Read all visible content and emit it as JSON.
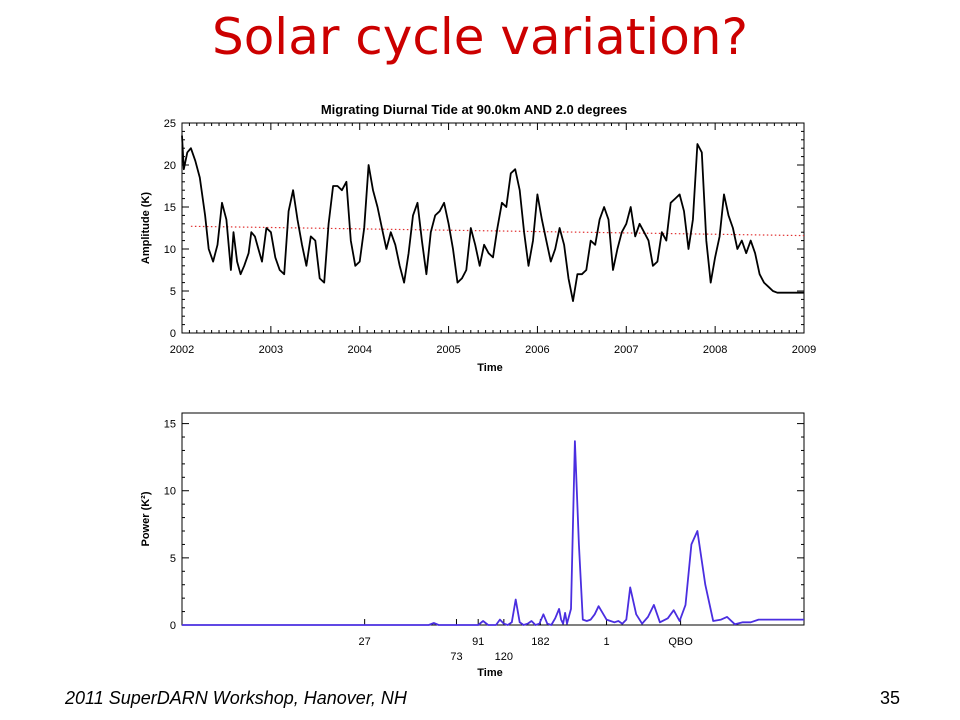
{
  "slide": {
    "title": "Solar cycle variation?",
    "footer": "2011 SuperDARN Workshop, Hanover, NH",
    "page_number": "35"
  },
  "colors": {
    "title": "#cc0000",
    "amplitude_line": "#000000",
    "trend_line": "#e03030",
    "power_line": "#4a2ee0"
  },
  "chart_data": [
    {
      "type": "line",
      "title": "Migrating Diurnal Tide at  90.0km AND  2.0 degrees",
      "xlabel": "Time",
      "ylabel": "Amplitude (K)",
      "xlim": [
        2002,
        2009
      ],
      "ylim": [
        0,
        25
      ],
      "x_ticks": [
        "2002",
        "2003",
        "2004",
        "2005",
        "2006",
        "2007",
        "2008",
        "2009"
      ],
      "y_ticks": [
        "0",
        "5",
        "10",
        "15",
        "20",
        "25"
      ],
      "series": [
        {
          "style": "solid",
          "x": [
            2002.0,
            2002.02,
            2002.06,
            2002.1,
            2002.15,
            2002.2,
            2002.26,
            2002.3,
            2002.35,
            2002.4,
            2002.45,
            2002.5,
            2002.55,
            2002.58,
            2002.62,
            2002.66,
            2002.7,
            2002.75,
            2002.78,
            2002.82,
            2002.86,
            2002.9,
            2002.95,
            2003.0,
            2003.05,
            2003.1,
            2003.15,
            2003.2,
            2003.25,
            2003.3,
            2003.35,
            2003.4,
            2003.45,
            2003.5,
            2003.55,
            2003.6,
            2003.65,
            2003.7,
            2003.75,
            2003.8,
            2003.85,
            2003.9,
            2003.95,
            2004.0,
            2004.05,
            2004.1,
            2004.15,
            2004.2,
            2004.25,
            2004.3,
            2004.35,
            2004.4,
            2004.45,
            2004.5,
            2004.55,
            2004.6,
            2004.65,
            2004.7,
            2004.75,
            2004.8,
            2004.85,
            2004.9,
            2004.95,
            2005.0,
            2005.05,
            2005.1,
            2005.15,
            2005.2,
            2005.25,
            2005.3,
            2005.35,
            2005.4,
            2005.45,
            2005.5,
            2005.55,
            2005.6,
            2005.65,
            2005.7,
            2005.75,
            2005.8,
            2005.85,
            2005.9,
            2005.95,
            2006.0,
            2006.05,
            2006.1,
            2006.15,
            2006.2,
            2006.25,
            2006.3,
            2006.35,
            2006.4,
            2006.45,
            2006.5,
            2006.55,
            2006.6,
            2006.65,
            2006.7,
            2006.75,
            2006.8,
            2006.85,
            2006.9,
            2006.95,
            2007.0,
            2007.05,
            2007.1,
            2007.15,
            2007.2,
            2007.25,
            2007.3,
            2007.35,
            2007.4,
            2007.45,
            2007.5,
            2007.55,
            2007.6,
            2007.65,
            2007.7,
            2007.75,
            2007.8,
            2007.85,
            2007.9,
            2007.95,
            2008.0,
            2008.05,
            2008.1,
            2008.15,
            2008.2,
            2008.25,
            2008.3,
            2008.35,
            2008.4,
            2008.45,
            2008.5,
            2008.55,
            2008.6,
            2008.65,
            2008.7,
            2008.75,
            2008.8,
            2008.85,
            2008.9,
            2008.95,
            2009.0
          ],
          "y": [
            23.5,
            19.5,
            21.5,
            22.0,
            20.5,
            18.5,
            14.0,
            10.0,
            8.5,
            10.5,
            15.5,
            13.5,
            7.5,
            12.0,
            8.5,
            7.0,
            8.0,
            9.5,
            12.0,
            11.5,
            10.0,
            8.5,
            12.5,
            12.0,
            9.0,
            7.5,
            7.0,
            14.5,
            17.0,
            13.5,
            10.5,
            8.0,
            11.5,
            11.0,
            6.5,
            6.0,
            13.0,
            17.5,
            17.5,
            17.0,
            18.0,
            11.0,
            8.0,
            8.5,
            12.5,
            20.0,
            17.0,
            15.0,
            12.5,
            10.0,
            12.0,
            10.5,
            8.0,
            6.0,
            9.5,
            14.0,
            15.5,
            11.0,
            7.0,
            12.0,
            14.0,
            14.5,
            15.5,
            13.0,
            10.0,
            6.0,
            6.5,
            7.5,
            12.5,
            10.5,
            8.0,
            10.5,
            9.5,
            9.0,
            12.5,
            15.5,
            15.0,
            19.0,
            19.5,
            17.0,
            12.0,
            8.0,
            11.0,
            16.5,
            13.5,
            11.0,
            8.5,
            10.0,
            12.5,
            10.5,
            6.5,
            3.8,
            7.0,
            7.0,
            7.5,
            11.0,
            10.5,
            13.5,
            15.0,
            13.5,
            7.5,
            10.0,
            12.0,
            13.0,
            15.0,
            11.5,
            13.0,
            12.0,
            11.0,
            8.0,
            8.5,
            12.0,
            11.0,
            15.5,
            16.0,
            16.5,
            14.5,
            10.0,
            13.5,
            22.5,
            21.5,
            11.0,
            6.0,
            9.0,
            11.5,
            16.5,
            14.0,
            12.5,
            10.0,
            11.0,
            9.5,
            11.0,
            9.5,
            7.0,
            6.0,
            5.5,
            5.0,
            4.8,
            4.8,
            4.8,
            4.8,
            4.8,
            4.8,
            4.8
          ]
        },
        {
          "style": "dotted",
          "x": [
            2002.1,
            2009.0
          ],
          "y": [
            12.7,
            11.6
          ]
        }
      ]
    },
    {
      "type": "line",
      "title": "",
      "xlabel": "Time",
      "ylabel": "Power (K²)",
      "ylim": [
        0,
        15
      ],
      "y_ticks": [
        "0",
        "5",
        "10",
        "15"
      ],
      "x_ticks": [
        "27",
        "91",
        "182",
        "1",
        "QBO"
      ],
      "x_ticks_lower": [
        "73",
        "120"
      ],
      "series": [
        {
          "style": "solid",
          "x": [
            0,
            250,
            255,
            260,
            280,
            300,
            305,
            310,
            318,
            322,
            326,
            330,
            334,
            338,
            342,
            346,
            350,
            354,
            358,
            362,
            366,
            370,
            374,
            378,
            382,
            384,
            386,
            388,
            390,
            394,
            398,
            402,
            406,
            410,
            414,
            418,
            422,
            426,
            430,
            434,
            438,
            442,
            446,
            450,
            454,
            460,
            466,
            472,
            478,
            484,
            492,
            498,
            504,
            510,
            516,
            522,
            530,
            538,
            546,
            552,
            560,
            568,
            576,
            584,
            590,
            600,
            630
          ],
          "y": [
            0,
            0,
            0.15,
            0,
            0,
            0,
            0.3,
            0,
            0,
            0.4,
            0.1,
            0,
            0.2,
            1.9,
            0.2,
            0,
            0.1,
            0.3,
            0,
            0.1,
            0.8,
            0.1,
            0,
            0.5,
            1.2,
            0.4,
            0.1,
            0.9,
            0.1,
            1.2,
            13.7,
            6,
            0.4,
            0.3,
            0.4,
            0.8,
            1.4,
            0.9,
            0.4,
            0.3,
            0.2,
            0.3,
            0.1,
            0.4,
            2.8,
            0.8,
            0.1,
            0.6,
            1.5,
            0.2,
            0.5,
            1.1,
            0.3,
            1.5,
            6,
            7,
            3,
            0.3,
            0.4,
            0.6,
            0.05,
            0.2,
            0.2,
            0.4,
            0.4,
            0.4,
            0.4
          ]
        }
      ]
    }
  ]
}
